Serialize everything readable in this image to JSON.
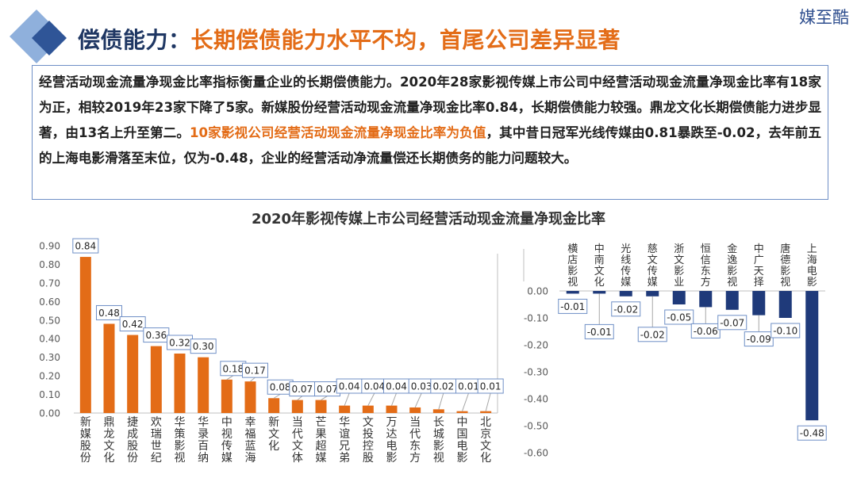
{
  "brand": "媒至酷",
  "header": {
    "title_prefix": "偿债能力：",
    "title_main": "长期偿债能力水平不均，首尾公司差异显著"
  },
  "summary": {
    "part1": "经营活动现金流量净现金比率指标衡量企业的长期偿债能力。2020年28家影视传媒上市公司中经营活动现金流量净现金比率有18家为正，相较2019年23家下降了5家。新媒股份经营活动现金流量净现金比率0.84，长期偿债能力较强。鼎龙文化长期偿债能力进步显著，由13名上升至第二。",
    "highlight": "10家影视公司经营活动现金流量净现金比率为负值",
    "part2": "，其中昔日冠军光线传媒由0.81暴跌至-0.02，去年前五的上海电影滑落至末位，仅为-0.48，企业的经营活动净流量偿还长期债务的能力问题较大。"
  },
  "colors": {
    "positive_bar": "#e36c17",
    "negative_bar": "#1f3a7a",
    "title_dark": "#1f3763",
    "title_accent": "#e36c17"
  },
  "chart_data": [
    {
      "type": "bar",
      "title": "2020年影视传媒上市公司经营活动现金流量净现金比率",
      "categories": [
        "新媒股份",
        "鼎龙文化",
        "捷成股份",
        "欢瑞世纪",
        "华策影视",
        "华录百纳",
        "中视传媒",
        "幸福蓝海",
        "新文化",
        "当代文体",
        "芒果超媒",
        "华谊兄弟",
        "文投控股",
        "万达电影",
        "当代东方",
        "长城影视",
        "中国电影",
        "北京文化"
      ],
      "values": [
        0.84,
        0.48,
        0.42,
        0.36,
        0.32,
        0.3,
        0.18,
        0.17,
        0.08,
        0.07,
        0.07,
        0.04,
        0.04,
        0.04,
        0.03,
        0.02,
        0.01,
        0.01
      ],
      "labels": [
        "0.84",
        "0.48",
        "0.42",
        "0.36",
        "0.32",
        "0.30",
        "0.18",
        "0.17",
        "0.08",
        "0.07",
        "0.07",
        "0.04",
        "0.04",
        "0.04",
        "0.03",
        "0.02",
        "0.01",
        "0.01"
      ],
      "ylim": [
        0,
        0.9
      ],
      "yticks": [
        "0.00",
        "0.10",
        "0.20",
        "0.30",
        "0.40",
        "0.50",
        "0.60",
        "0.70",
        "0.80",
        "0.90"
      ],
      "grid": false
    },
    {
      "type": "bar",
      "categories": [
        "横店影视",
        "中南文化",
        "光线传媒",
        "慈文传媒",
        "浙文影业",
        "恒信东方",
        "金逸影视",
        "中广天择",
        "唐德影视",
        "上海电影"
      ],
      "values": [
        -0.01,
        -0.01,
        -0.02,
        -0.02,
        -0.05,
        -0.06,
        -0.07,
        -0.09,
        -0.1,
        -0.48
      ],
      "labels": [
        "-0.01",
        "-0.01",
        "-0.02",
        "-0.02",
        "-0.05",
        "-0.06",
        "-0.07",
        "-0.09",
        "-0.10",
        "-0.48"
      ],
      "ylim": [
        -0.6,
        0
      ],
      "yticks": [
        "0.00",
        "-0.10",
        "-0.20",
        "-0.30",
        "-0.40",
        "-0.50",
        "-0.60"
      ],
      "grid": false
    }
  ]
}
